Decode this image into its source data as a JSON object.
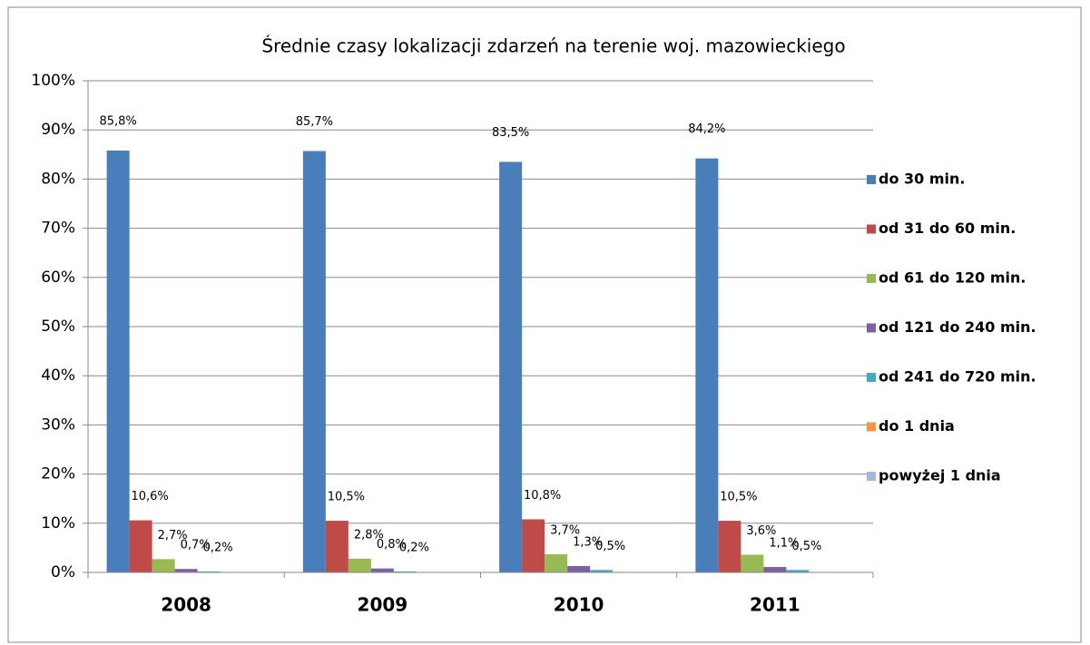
{
  "chart_data": {
    "type": "bar",
    "title": "Średnie czasy lokalizacji zdarzeń na terenie woj. mazowieckiego",
    "categories": [
      "2008",
      "2009",
      "2010",
      "2011"
    ],
    "series": [
      {
        "name": "do 30 min.",
        "color": "#4a7ebb",
        "values": [
          85.8,
          85.7,
          83.5,
          84.2
        ],
        "value_labels": [
          "85,8%",
          "85,7%",
          "83,5%",
          "84,2%"
        ]
      },
      {
        "name": "od 31 do 60 min.",
        "color": "#be4b48",
        "values": [
          10.6,
          10.5,
          10.8,
          10.5
        ],
        "value_labels": [
          "10,6%",
          "10,5%",
          "10,8%",
          "10,5%"
        ]
      },
      {
        "name": "od 61 do 120 min.",
        "color": "#98b954",
        "values": [
          2.7,
          2.8,
          3.7,
          3.6
        ],
        "value_labels": [
          "2,7%",
          "2,8%",
          "3,7%",
          "3,6%"
        ]
      },
      {
        "name": "od 121 do 240 min.",
        "color": "#7d60a0",
        "values": [
          0.7,
          0.8,
          1.3,
          1.1
        ],
        "value_labels": [
          "0,7%",
          "0,8%",
          "1,3%",
          "1,1%"
        ]
      },
      {
        "name": "od 241 do 720 min.",
        "color": "#46aac5",
        "values": [
          0.2,
          0.2,
          0.5,
          0.5
        ],
        "value_labels": [
          "0,2%",
          "0,2%",
          "0,5%",
          "0,5%"
        ]
      },
      {
        "name": "do 1 dnia",
        "color": "#f79646",
        "values": [
          0.1,
          0.1,
          0.1,
          0.1
        ]
      },
      {
        "name": "powyżej 1 dnia",
        "color": "#a5b8e1",
        "values": [
          0.1,
          0.1,
          0.1,
          0.1
        ]
      }
    ],
    "ylim": [
      0,
      100
    ],
    "yticks": [
      {
        "value": 0,
        "label": "0%"
      },
      {
        "value": 10,
        "label": "10%"
      },
      {
        "value": 20,
        "label": "20%"
      },
      {
        "value": 30,
        "label": "30%"
      },
      {
        "value": 40,
        "label": "40%"
      },
      {
        "value": 50,
        "label": "50%"
      },
      {
        "value": 60,
        "label": "60%"
      },
      {
        "value": 70,
        "label": "70%"
      },
      {
        "value": 80,
        "label": "80%"
      },
      {
        "value": 90,
        "label": "90%"
      },
      {
        "value": 100,
        "label": "100%"
      }
    ],
    "grid": true,
    "legend": "right"
  }
}
